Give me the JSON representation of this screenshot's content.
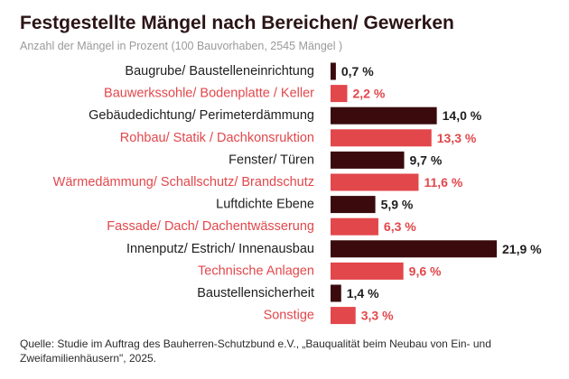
{
  "header": {
    "title": "Festgestellte Mängel nach Bereichen/ Gewerken",
    "subtitle": "Anzahl der Mängel in Prozent (100 Bauvorhaben, 2545 Mängel )"
  },
  "colors": {
    "dark": "#3a0a0c",
    "accent": "#e2474b",
    "text_dark": "#1e1e1e"
  },
  "chart_data": {
    "type": "bar",
    "orientation": "horizontal",
    "categories": [
      "Baugrube/ Baustelleneinrichtung",
      "Bauwerkssohle/ Bodenplatte / Keller",
      "Gebäudedichtung/ Perimeterdämmung",
      "Rohbau/ Statik / Dachkonsruktion",
      "Fenster/ Türen",
      "Wärmedämmung/ Schallschutz/ Brandschutz",
      "Luftdichte Ebene",
      "Fassade/ Dach/ Dachentwässerung",
      "Innenputz/ Estrich/ Innenausbau",
      "Technische Anlagen",
      "Baustellensicherheit",
      "Sonstige"
    ],
    "values": [
      0.7,
      2.2,
      14.0,
      13.3,
      9.7,
      11.6,
      5.9,
      6.3,
      21.9,
      9.6,
      1.4,
      3.3
    ],
    "value_labels": [
      "0,7 %",
      "2,2 %",
      "14,0 %",
      "13,3 %",
      "9,7 %",
      "11,6 %",
      "5,9 %",
      "6,3 %",
      "21,9 %",
      "9,6 %",
      "1,4 %",
      "3,3 %"
    ],
    "xlim": [
      0,
      21.9
    ],
    "grid": false,
    "legend": "none"
  },
  "footer": {
    "source": "Quelle: Studie im Auftrag des Bauherren-Schutzbund e.V., „Bauqualität beim Neubau von Ein- und Zweifamilienhäusern\", 2025."
  }
}
